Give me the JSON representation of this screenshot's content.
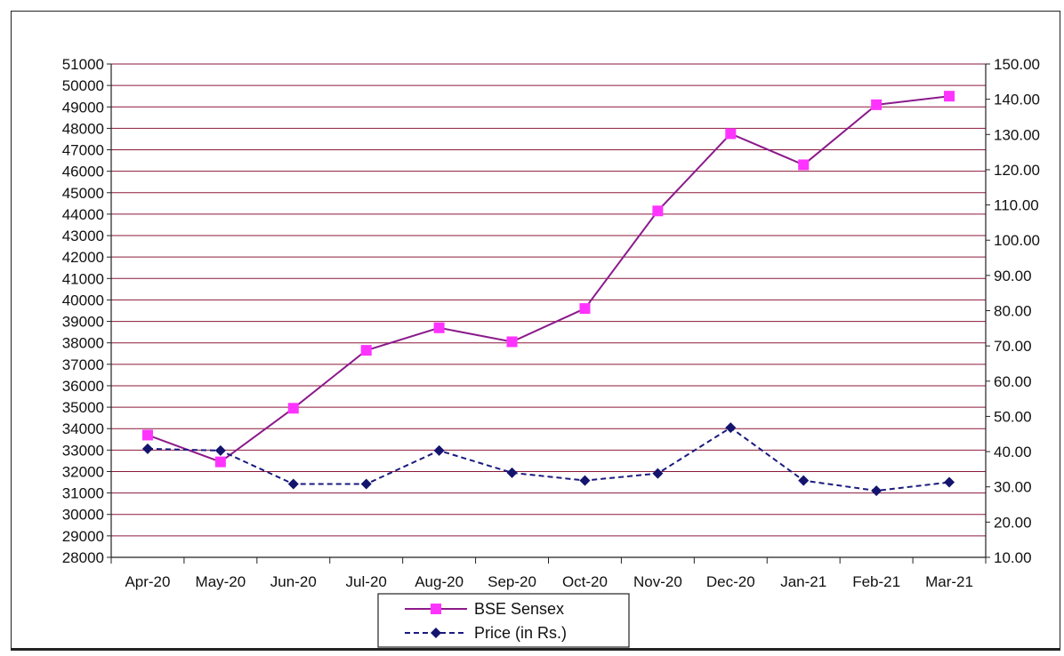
{
  "chart_data": {
    "type": "line",
    "title": "",
    "categories": [
      "Apr-20",
      "May-20",
      "Jun-20",
      "Jul-20",
      "Aug-20",
      "Sep-20",
      "Oct-20",
      "Nov-20",
      "Dec-20",
      "Jan-21",
      "Feb-21",
      "Mar-21"
    ],
    "y_left": {
      "min": 28000,
      "max": 51000,
      "step": 1000,
      "ticks": [
        "28000",
        "29000",
        "30000",
        "31000",
        "32000",
        "33000",
        "34000",
        "35000",
        "36000",
        "37000",
        "38000",
        "39000",
        "40000",
        "41000",
        "42000",
        "43000",
        "44000",
        "45000",
        "46000",
        "47000",
        "48000",
        "49000",
        "50000",
        "51000"
      ]
    },
    "y_right": {
      "min": 10,
      "max": 150,
      "step": 10,
      "ticks": [
        "10.00",
        "20.00",
        "30.00",
        "40.00",
        "50.00",
        "60.00",
        "70.00",
        "80.00",
        "90.00",
        "100.00",
        "110.00",
        "120.00",
        "130.00",
        "140.00",
        "150.00"
      ]
    },
    "series": [
      {
        "name": "BSE Sensex",
        "axis": "left",
        "color": "#8b1a8b",
        "marker_color": "#ff33ff",
        "marker": "square",
        "line_style": "solid",
        "values": [
          33700,
          32450,
          34950,
          37650,
          38700,
          38050,
          39600,
          44150,
          47750,
          46300,
          49100,
          49500
        ]
      },
      {
        "name": "Price (in Rs.)",
        "axis": "right",
        "color": "#1a1a80",
        "marker_color": "#14146e",
        "marker": "diamond",
        "line_style": "dashed",
        "values": [
          40.8,
          40.3,
          30.8,
          30.8,
          40.3,
          34.0,
          31.8,
          33.8,
          46.8,
          31.8,
          28.9,
          31.3
        ]
      }
    ],
    "grid": true,
    "grid_color": "#8b1a3a",
    "legend_position": "bottom-center"
  }
}
